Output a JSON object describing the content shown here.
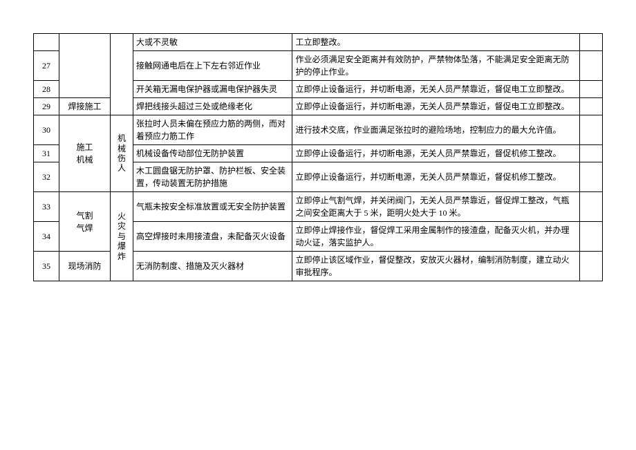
{
  "table": {
    "col_widths_pct": [
      4.5,
      9,
      4,
      28,
      50.5,
      4
    ],
    "rows": [
      {
        "n": "",
        "c2": "",
        "c3": "",
        "c4": "大或不灵敏",
        "c5": "工立即整改。",
        "c6": ""
      },
      {
        "n": "27",
        "c4": "接触网通电后在上下左右邻近作业",
        "c5": "作业必须满足安全距离并有效防护，严禁物体坠落，不能满足安全距离无防护的停止作业。",
        "c6": ""
      },
      {
        "n": "28",
        "c4": "开关箱无漏电保护器或漏电保护器失灵",
        "c5": "立即停止设备运行，并切断电源，无关人员严禁靠近，督促电工立即整改。",
        "c6": ""
      },
      {
        "n": "29",
        "c2": "焊接施工",
        "c4": "焊把线接头超过三处或绝缘老化",
        "c5": "立即停止设备运行，并切断电源，无关人员严禁靠近，督促电工立即整改。",
        "c6": ""
      },
      {
        "n": "30",
        "c4": "张拉时人员未偏在预应力筋的两侧，而对着预应力筋工作",
        "c5": "进行技术交底，作业面满足张拉时的避险场地，控制应力的最大允许值。",
        "c6": ""
      },
      {
        "n": "31",
        "c4": "机械设备传动部位无防护装置",
        "c5": "立即停止设备运行，并切断电源，无关人员严禁靠近，督促机修工整改。",
        "c6": ""
      },
      {
        "n": "32",
        "c4": "木工圆盘锯无防护罩、防护栏板、安全装置，传动装置无防护措施",
        "c5": "立即停止设备运行，并切断电源，无关人员严禁靠近，督促机修工整改。",
        "c6": ""
      },
      {
        "n": "33",
        "c4": "气瓶未按安全标准放置或无安全防护装置",
        "c5": "立即停止气割气焊，并关闭阀门，无关人员严禁靠近，督促焊工整改，气瓶之间安全距离大于 5 米，距明火处大于 10 米。",
        "c6": ""
      },
      {
        "n": "34",
        "c4": "高空焊接时未用接渣盘，未配备灭火设备",
        "c5": "立即停止焊接作业，督促焊工采用金属制作的接渣盘，配备灭火机，并办理动火证，落实监护人。",
        "c6": ""
      },
      {
        "n": "35",
        "c2": "现场消防",
        "c4": "无消防制度、措施及灭火器材",
        "c5": "立即停止该区域作业，督促整改，安放灭火器材，编制消防制度，建立动火审批程序。",
        "c6": ""
      }
    ],
    "group_c2": {
      "construction_machinery": "施工\n机械",
      "gas_cut_weld": "气割\n气焊"
    },
    "group_c3": {
      "mech_injury": "机械伤人",
      "fire_explosion": "火灾与爆炸"
    }
  }
}
